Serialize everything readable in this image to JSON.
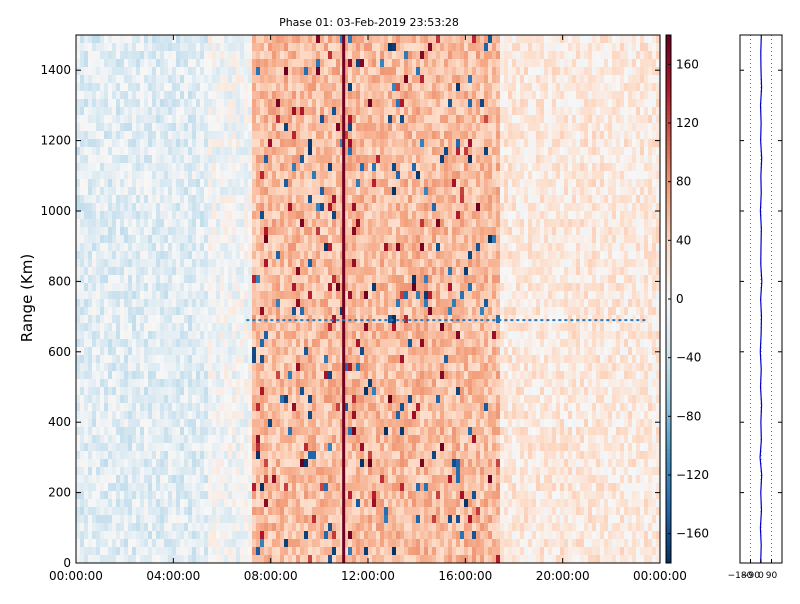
{
  "chart_data": [
    {
      "type": "heatmap",
      "title": "Phase 01: 03-Feb-2019 23:53:28",
      "xlabel": "",
      "ylabel": "Range (Km)",
      "x_tick_labels": [
        "00:00:00",
        "04:00:00",
        "08:00:00",
        "12:00:00",
        "16:00:00",
        "20:00:00",
        "00:00:00"
      ],
      "x_tick_hours": [
        0,
        4,
        8,
        12,
        16,
        20,
        24
      ],
      "xlim_hours": [
        0,
        24
      ],
      "y_ticks": [
        0,
        200,
        400,
        600,
        800,
        1000,
        1200,
        1400
      ],
      "ylim": [
        0,
        1500
      ],
      "colormap": "RdBu_r",
      "colorbar": {
        "ticks": [
          160,
          120,
          80,
          40,
          0,
          -40,
          -80,
          -120,
          -160
        ],
        "range": [
          -180,
          180
        ]
      },
      "bands": [
        {
          "start_hour": 0.0,
          "end_hour": 5.5,
          "mean_phase": -20
        },
        {
          "start_hour": 5.5,
          "end_hour": 7.2,
          "mean_phase": -5
        },
        {
          "start_hour": 7.2,
          "end_hour": 17.5,
          "mean_phase": 55
        },
        {
          "start_hour": 17.5,
          "end_hour": 24.0,
          "mean_phase": 18
        }
      ],
      "features": [
        {
          "type": "vertical_line",
          "hour": 11.0,
          "phase": 175
        },
        {
          "type": "horizontal_line",
          "range_km": 690,
          "start_hour": 7.0,
          "end_hour": 23.5,
          "phase": -130
        }
      ]
    },
    {
      "type": "line",
      "title": "",
      "xlabel": "",
      "ylabel": "",
      "x_tick_labels": [
        "−180",
        "−90",
        "0",
        "90"
      ],
      "x_ticks": [
        -180,
        -90,
        0,
        90
      ],
      "xlim": [
        -180,
        180
      ],
      "ylim": [
        0,
        1500
      ],
      "y_ticks": [
        0,
        200,
        400,
        600,
        800,
        1000,
        1200,
        1400
      ],
      "grid_x": true,
      "line_color": "#0000cc",
      "series": [
        {
          "x": [
            -3,
            2,
            -5,
            4,
            -2,
            6,
            -8,
            3,
            -1,
            5,
            -4,
            2,
            -6,
            1,
            4,
            -3,
            7,
            -2,
            0,
            3,
            -5,
            2,
            -1,
            6,
            -3,
            1,
            -4,
            5,
            0,
            -2,
            3
          ],
          "y": [
            0,
            50,
            100,
            150,
            200,
            250,
            300,
            350,
            400,
            450,
            500,
            550,
            600,
            650,
            700,
            750,
            800,
            850,
            900,
            950,
            1000,
            1050,
            1100,
            1150,
            1200,
            1250,
            1300,
            1350,
            1400,
            1450,
            1500
          ]
        }
      ]
    }
  ]
}
